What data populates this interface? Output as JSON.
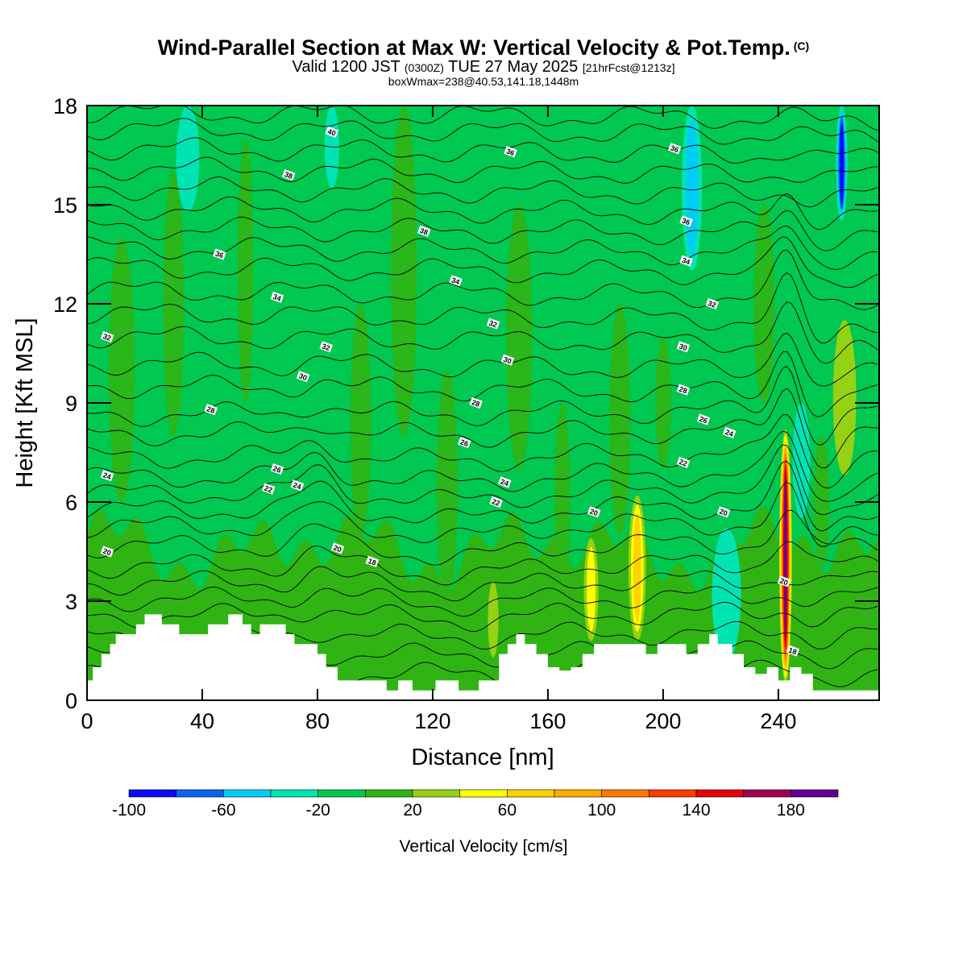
{
  "title": {
    "main": "Wind-Parallel Section at Max W: Vertical Velocity & Pot.Temp.",
    "copyright": "(C)",
    "valid_prefix": "Valid 1200 JST",
    "valid_utc": "(0300Z)",
    "valid_date": "TUE 27 May 2025",
    "forecast": "[21hrFcst@1213z]",
    "boxwmax": "boxWmax=238@40.53,141.18,1448m"
  },
  "chart_data": {
    "type": "heatmap",
    "xlabel": "Distance [nm]",
    "ylabel": "Height [Kft MSL]",
    "xlim": [
      0,
      275
    ],
    "ylim": [
      0,
      18
    ],
    "x_ticks": [
      0,
      40,
      80,
      120,
      160,
      200,
      240
    ],
    "y_ticks": [
      0,
      3,
      6,
      9,
      12,
      15,
      18
    ],
    "colorbar": {
      "label": "Vertical Velocity [cm/s]",
      "ticks": [
        -100,
        -60,
        -20,
        20,
        60,
        100,
        140,
        180
      ],
      "bins": [
        {
          "lo": -100,
          "hi": -80,
          "color": "#0a0aff"
        },
        {
          "lo": -80,
          "hi": -60,
          "color": "#0a64f0"
        },
        {
          "lo": -60,
          "hi": -40,
          "color": "#00cdf5"
        },
        {
          "lo": -40,
          "hi": -20,
          "color": "#00e4b4"
        },
        {
          "lo": -20,
          "hi": 0,
          "color": "#00c850"
        },
        {
          "lo": 0,
          "hi": 20,
          "color": "#30b414"
        },
        {
          "lo": 20,
          "hi": 40,
          "color": "#96d214"
        },
        {
          "lo": 40,
          "hi": 60,
          "color": "#ffff00"
        },
        {
          "lo": 60,
          "hi": 80,
          "color": "#ffd200"
        },
        {
          "lo": 80,
          "hi": 100,
          "color": "#ffaa00"
        },
        {
          "lo": 100,
          "hi": 120,
          "color": "#ff7800"
        },
        {
          "lo": 120,
          "hi": 140,
          "color": "#ff3c00"
        },
        {
          "lo": 140,
          "hi": 160,
          "color": "#e6000a"
        },
        {
          "lo": 160,
          "hi": 180,
          "color": "#a00050"
        },
        {
          "lo": 180,
          "hi": 200,
          "color": "#640096"
        }
      ]
    },
    "terrain": [
      [
        0,
        0.6
      ],
      [
        2,
        1.0
      ],
      [
        5,
        1.4
      ],
      [
        8,
        1.7
      ],
      [
        10,
        2.0
      ],
      [
        14,
        2.0
      ],
      [
        17,
        2.3
      ],
      [
        20,
        2.6
      ],
      [
        23,
        2.6
      ],
      [
        26,
        2.3
      ],
      [
        30,
        2.3
      ],
      [
        32,
        2.0
      ],
      [
        38,
        2.0
      ],
      [
        42,
        2.3
      ],
      [
        46,
        2.3
      ],
      [
        49,
        2.6
      ],
      [
        52,
        2.6
      ],
      [
        54,
        2.3
      ],
      [
        57,
        2.0
      ],
      [
        60,
        2.3
      ],
      [
        66,
        2.3
      ],
      [
        69,
        2.0
      ],
      [
        72,
        1.7
      ],
      [
        77,
        1.7
      ],
      [
        80,
        1.4
      ],
      [
        83,
        1.0
      ],
      [
        87,
        0.6
      ],
      [
        100,
        0.6
      ],
      [
        104,
        0.3
      ],
      [
        108,
        0.6
      ],
      [
        113,
        0.3
      ],
      [
        117,
        0.3
      ],
      [
        121,
        0.6
      ],
      [
        125,
        0.6
      ],
      [
        129,
        0.3
      ],
      [
        136,
        0.6
      ],
      [
        143,
        1.4
      ],
      [
        146,
        1.7
      ],
      [
        149,
        2.0
      ],
      [
        152,
        1.7
      ],
      [
        156,
        1.4
      ],
      [
        160,
        1.0
      ],
      [
        164,
        0.9
      ],
      [
        168,
        1.0
      ],
      [
        172,
        1.4
      ],
      [
        176,
        1.7
      ],
      [
        190,
        1.7
      ],
      [
        194,
        1.4
      ],
      [
        198,
        1.7
      ],
      [
        204,
        1.7
      ],
      [
        208,
        1.4
      ],
      [
        212,
        1.7
      ],
      [
        216,
        2.0
      ],
      [
        219,
        1.7
      ],
      [
        224,
        1.4
      ],
      [
        228,
        1.0
      ],
      [
        232,
        0.8
      ],
      [
        236,
        1.0
      ],
      [
        240,
        0.6
      ],
      [
        244,
        1.0
      ],
      [
        248,
        0.8
      ],
      [
        252,
        0.3
      ],
      [
        262,
        0.3
      ],
      [
        267,
        0.3
      ],
      [
        275,
        0.3
      ]
    ],
    "updrafts": [
      {
        "x": 242.5,
        "z0": 0.5,
        "z1": 8.2,
        "w": 190,
        "halfwidth": 2.2
      },
      {
        "x": 191,
        "z0": 1.8,
        "z1": 6.2,
        "w": 80,
        "halfwidth": 3.0
      },
      {
        "x": 175,
        "z0": 1.8,
        "z1": 4.9,
        "w": 50,
        "halfwidth": 2.5
      },
      {
        "x": 263,
        "z0": 6.8,
        "z1": 11.5,
        "w": 45,
        "halfwidth": 4.0
      },
      {
        "x": 141,
        "z0": 1.3,
        "z1": 3.6,
        "w": 45,
        "halfwidth": 1.8
      }
    ],
    "downdrafts": [
      {
        "x": 210,
        "z0": 13,
        "z1": 18,
        "w": -55,
        "halfwidth": 3.5
      },
      {
        "x": 262,
        "z0": 14.5,
        "z1": 18,
        "w": -95,
        "halfwidth": 2.0
      },
      {
        "x": 35,
        "z0": 14.8,
        "z1": 18,
        "w": -35,
        "halfwidth": 4.0
      },
      {
        "x": 85,
        "z0": 15.5,
        "z1": 18,
        "w": -30,
        "halfwidth": 2.5
      },
      {
        "x": 222,
        "z0": 1.2,
        "z1": 5.2,
        "w": -30,
        "halfwidth": 5.0
      },
      {
        "x": 248,
        "z0": 5.5,
        "z1": 9.0,
        "w": -30,
        "halfwidth": 3.0
      }
    ],
    "isentropes": [
      {
        "z": 0.8,
        "label": ""
      },
      {
        "z": 1.4,
        "label": ""
      },
      {
        "z": 2.0,
        "label": ""
      },
      {
        "z": 2.6,
        "label": ""
      },
      {
        "z": 3.1,
        "label": ""
      },
      {
        "z": 3.6,
        "label": ""
      },
      {
        "z": 4.1,
        "label": "20"
      },
      {
        "z": 4.7,
        "label": ""
      },
      {
        "z": 5.3,
        "label": ""
      },
      {
        "z": 5.8,
        "label": ""
      },
      {
        "z": 6.3,
        "label": ""
      },
      {
        "z": 6.8,
        "label": "24"
      },
      {
        "z": 7.4,
        "label": ""
      },
      {
        "z": 8.1,
        "label": ""
      },
      {
        "z": 8.7,
        "label": "28"
      },
      {
        "z": 9.4,
        "label": ""
      },
      {
        "z": 10.1,
        "label": ""
      },
      {
        "z": 10.9,
        "label": "32"
      },
      {
        "z": 11.6,
        "label": ""
      },
      {
        "z": 12.3,
        "label": ""
      },
      {
        "z": 13.0,
        "label": ""
      },
      {
        "z": 13.6,
        "label": ""
      },
      {
        "z": 14.2,
        "label": ""
      },
      {
        "z": 14.8,
        "label": ""
      },
      {
        "z": 15.4,
        "label": ""
      },
      {
        "z": 16.0,
        "label": ""
      },
      {
        "z": 16.6,
        "label": ""
      },
      {
        "z": 17.2,
        "label": ""
      },
      {
        "z": 17.7,
        "label": ""
      }
    ],
    "contour_labels": [
      {
        "x": 85,
        "z": 17.2,
        "text": "40"
      },
      {
        "x": 147,
        "z": 16.6,
        "text": "36"
      },
      {
        "x": 70,
        "z": 15.9,
        "text": "38"
      },
      {
        "x": 204,
        "z": 16.7,
        "text": "36"
      },
      {
        "x": 117,
        "z": 14.2,
        "text": "38"
      },
      {
        "x": 208,
        "z": 14.5,
        "text": "36"
      },
      {
        "x": 46,
        "z": 13.5,
        "text": "36"
      },
      {
        "x": 208,
        "z": 13.3,
        "text": "34"
      },
      {
        "x": 128,
        "z": 12.7,
        "text": "34"
      },
      {
        "x": 66,
        "z": 12.2,
        "text": "34"
      },
      {
        "x": 217,
        "z": 12.0,
        "text": "32"
      },
      {
        "x": 7,
        "z": 11.0,
        "text": "32"
      },
      {
        "x": 141,
        "z": 11.4,
        "text": "32"
      },
      {
        "x": 83,
        "z": 10.7,
        "text": "32"
      },
      {
        "x": 207,
        "z": 10.7,
        "text": "30"
      },
      {
        "x": 146,
        "z": 10.3,
        "text": "30"
      },
      {
        "x": 75,
        "z": 9.8,
        "text": "30"
      },
      {
        "x": 207,
        "z": 9.4,
        "text": "28"
      },
      {
        "x": 43,
        "z": 8.8,
        "text": "28"
      },
      {
        "x": 135,
        "z": 9.0,
        "text": "28"
      },
      {
        "x": 214,
        "z": 8.5,
        "text": "26"
      },
      {
        "x": 131,
        "z": 7.8,
        "text": "26"
      },
      {
        "x": 223,
        "z": 8.1,
        "text": "24"
      },
      {
        "x": 66,
        "z": 7.0,
        "text": "26"
      },
      {
        "x": 7,
        "z": 6.8,
        "text": "24"
      },
      {
        "x": 207,
        "z": 7.2,
        "text": "22"
      },
      {
        "x": 63,
        "z": 6.4,
        "text": "22"
      },
      {
        "x": 73,
        "z": 6.5,
        "text": "24"
      },
      {
        "x": 145,
        "z": 6.6,
        "text": "24"
      },
      {
        "x": 142,
        "z": 6.0,
        "text": "22"
      },
      {
        "x": 176,
        "z": 5.7,
        "text": "20"
      },
      {
        "x": 221,
        "z": 5.7,
        "text": "20"
      },
      {
        "x": 87,
        "z": 4.6,
        "text": "20"
      },
      {
        "x": 7,
        "z": 4.5,
        "text": "20"
      },
      {
        "x": 99,
        "z": 4.2,
        "text": "18"
      },
      {
        "x": 242,
        "z": 3.6,
        "text": "20"
      },
      {
        "x": 245,
        "z": 1.5,
        "text": "18"
      }
    ]
  }
}
